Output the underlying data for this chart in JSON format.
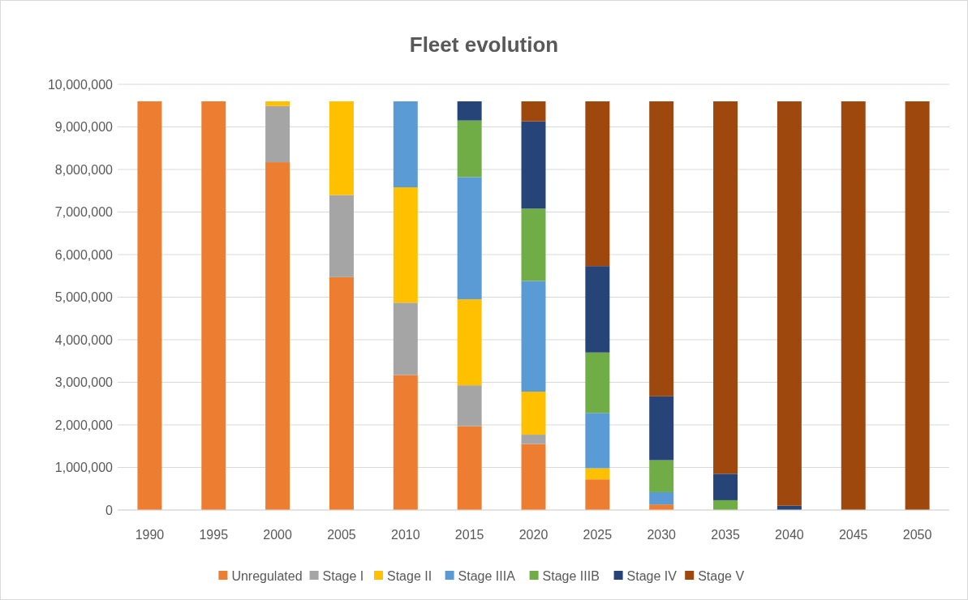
{
  "chart_data": {
    "type": "bar",
    "title": "Fleet evolution",
    "stacked": true,
    "grid": "y",
    "legend": "bottom",
    "categories": [
      "1990",
      "1995",
      "2000",
      "2005",
      "2010",
      "2015",
      "2020",
      "2025",
      "2030",
      "2035",
      "2040",
      "2045",
      "2050"
    ],
    "ylim": [
      0,
      10000000
    ],
    "yticks": [
      {
        "value": 0,
        "label": "0"
      },
      {
        "value": 1000000,
        "label": "1,000,000"
      },
      {
        "value": 2000000,
        "label": "2,000,000"
      },
      {
        "value": 3000000,
        "label": "3,000,000"
      },
      {
        "value": 4000000,
        "label": "4,000,000"
      },
      {
        "value": 5000000,
        "label": "5,000,000"
      },
      {
        "value": 6000000,
        "label": "6,000,000"
      },
      {
        "value": 7000000,
        "label": "7,000,000"
      },
      {
        "value": 8000000,
        "label": "8,000,000"
      },
      {
        "value": 9000000,
        "label": "9,000,000"
      },
      {
        "value": 10000000,
        "label": "10,000,000"
      }
    ],
    "series": [
      {
        "name": "Unregulated",
        "color": "#ed7d31",
        "values": [
          9600000,
          9600000,
          8170000,
          5470000,
          3170000,
          1970000,
          1550000,
          720000,
          130000,
          0,
          0,
          0,
          0
        ]
      },
      {
        "name": "Stage I",
        "color": "#a5a5a5",
        "values": [
          0,
          0,
          1320000,
          1930000,
          1700000,
          960000,
          220000,
          0,
          0,
          0,
          0,
          0,
          0
        ]
      },
      {
        "name": "Stage II",
        "color": "#ffc000",
        "values": [
          0,
          0,
          110000,
          2200000,
          2710000,
          2020000,
          1010000,
          260000,
          0,
          0,
          0,
          0,
          0
        ]
      },
      {
        "name": "Stage IIIA",
        "color": "#5b9bd5",
        "values": [
          0,
          0,
          0,
          0,
          2020000,
          2870000,
          2600000,
          1300000,
          290000,
          0,
          0,
          0,
          0
        ]
      },
      {
        "name": "Stage IIIB",
        "color": "#70ad47",
        "values": [
          0,
          0,
          0,
          0,
          0,
          1330000,
          1700000,
          1420000,
          750000,
          230000,
          0,
          0,
          0
        ]
      },
      {
        "name": "Stage IV",
        "color": "#264478",
        "values": [
          0,
          0,
          0,
          0,
          0,
          450000,
          2050000,
          2030000,
          1500000,
          620000,
          100000,
          0,
          0
        ]
      },
      {
        "name": "Stage V",
        "color": "#9e480e",
        "values": [
          0,
          0,
          0,
          0,
          0,
          0,
          470000,
          3870000,
          6930000,
          8750000,
          9500000,
          9600000,
          9600000
        ]
      }
    ]
  }
}
